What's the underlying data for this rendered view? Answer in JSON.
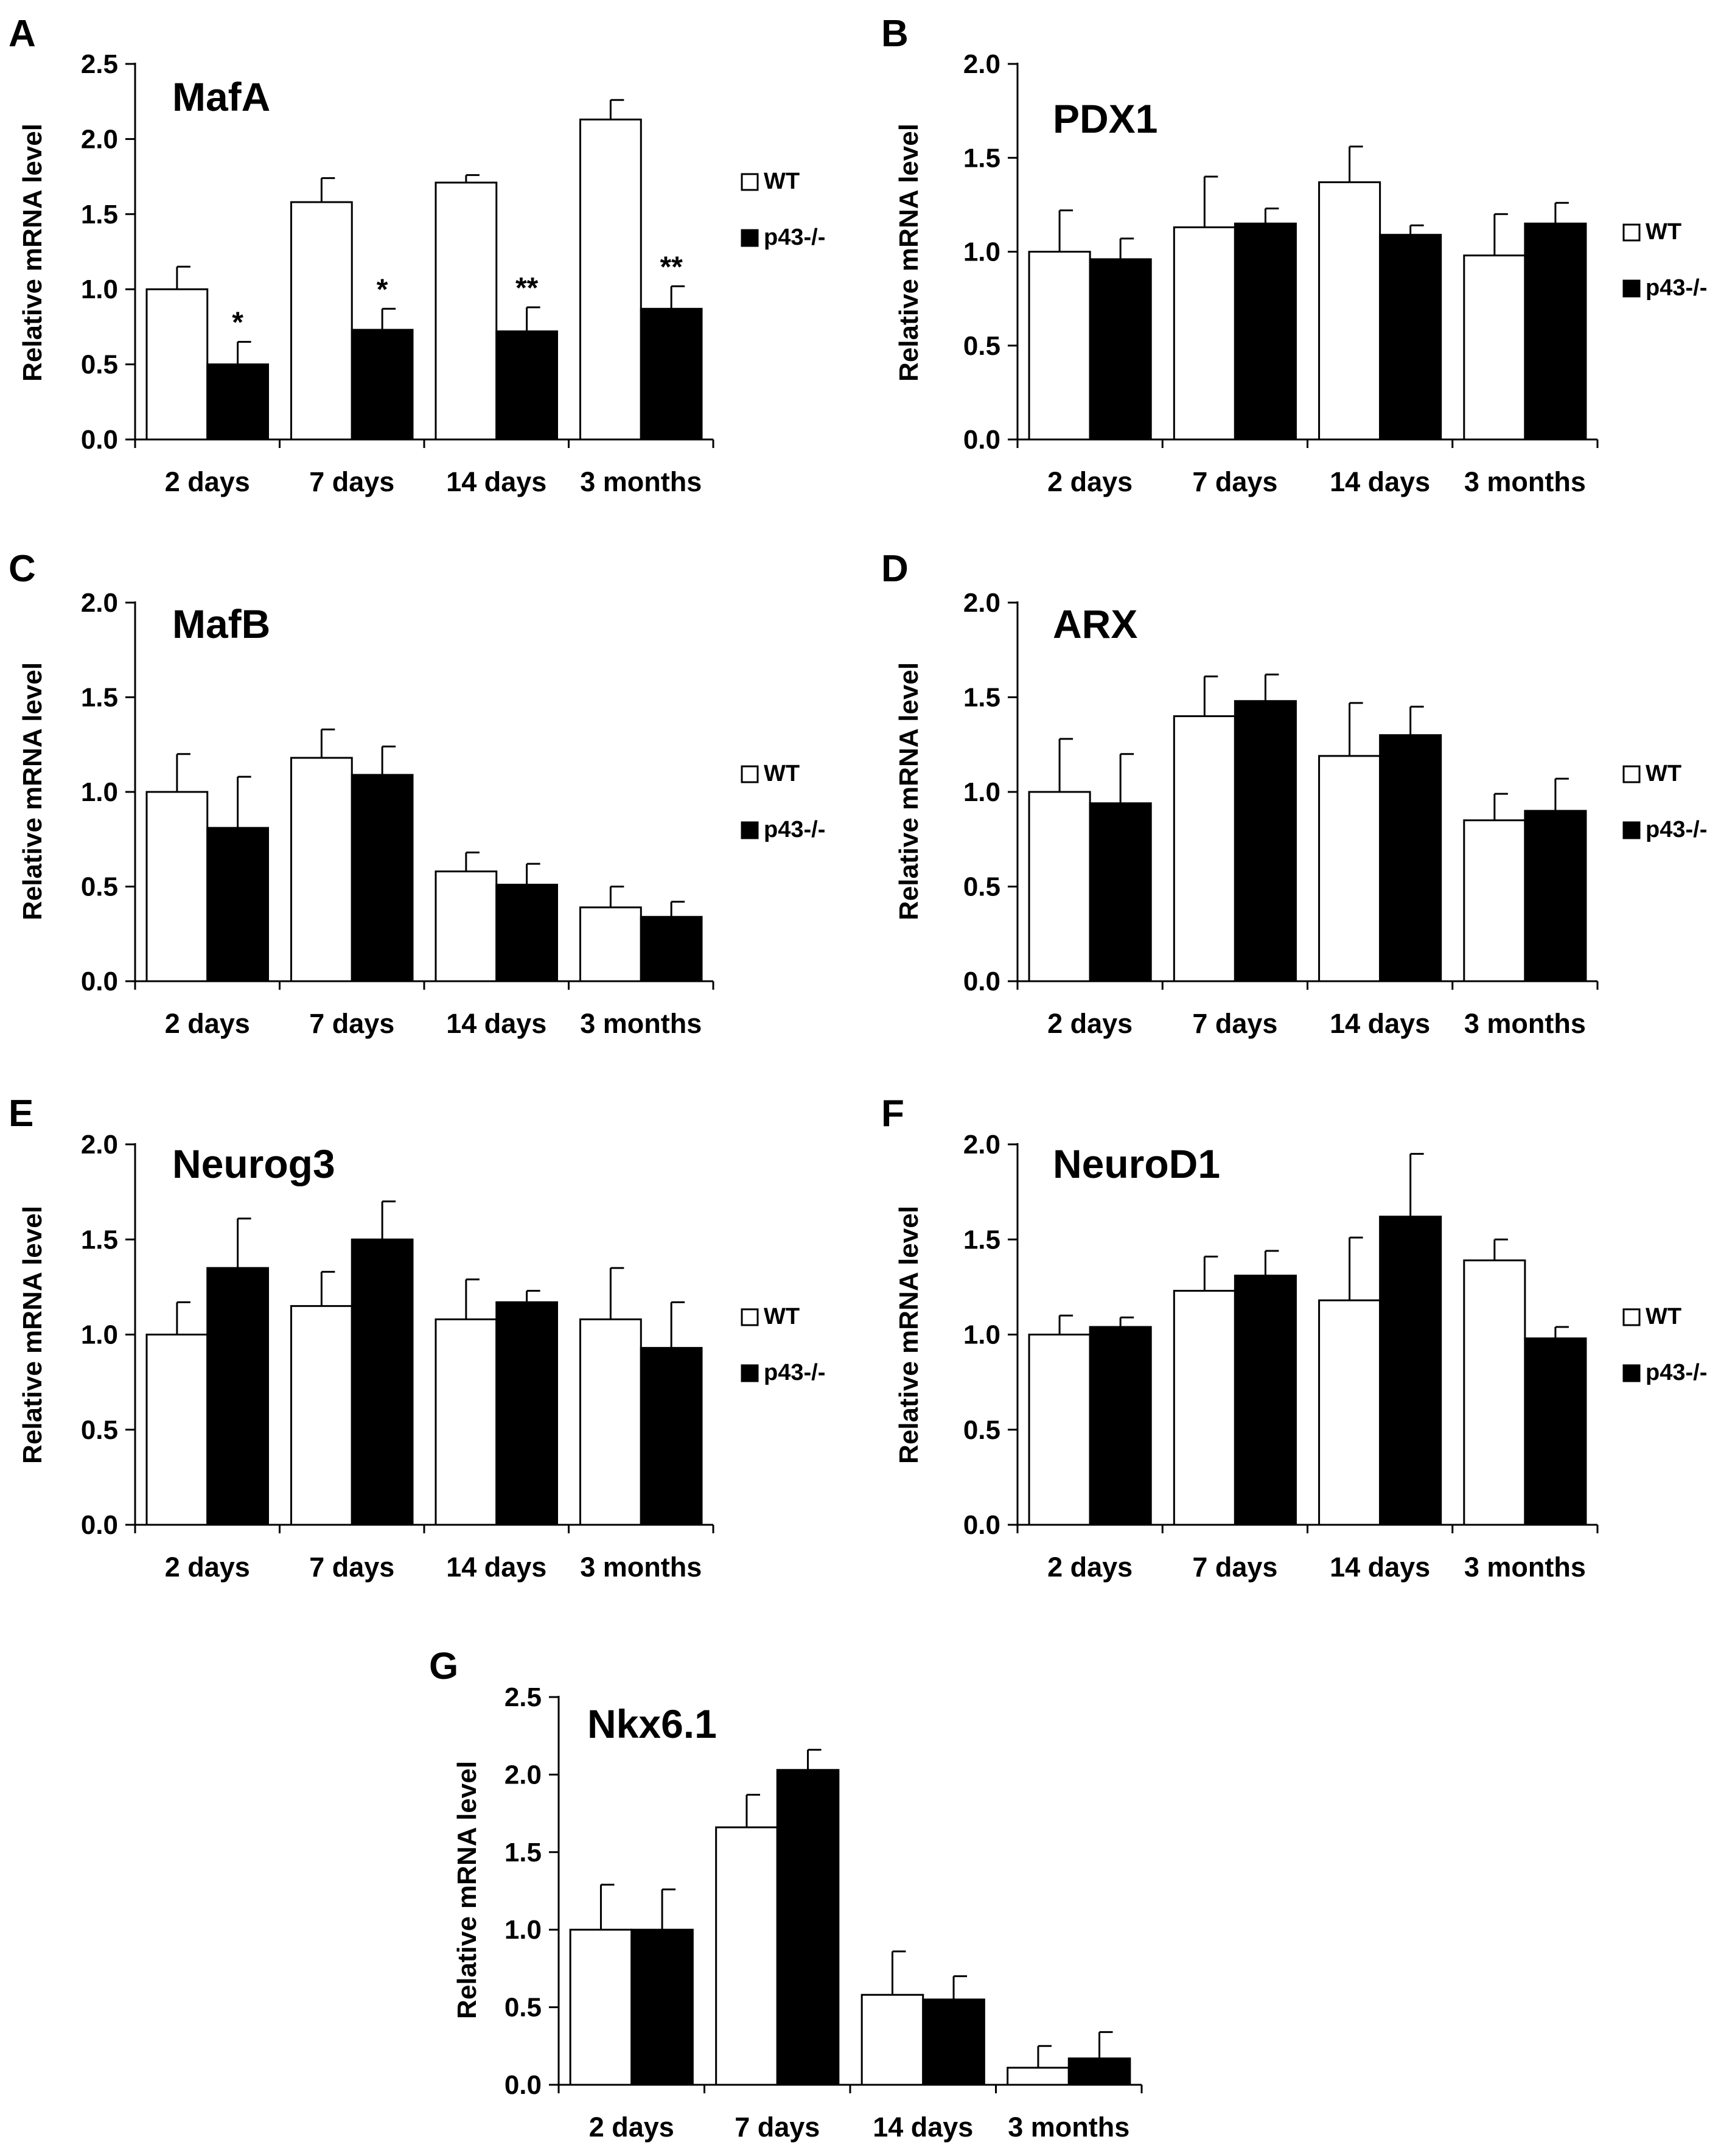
{
  "figure": {
    "categories": [
      "2 days",
      "7 days",
      "14 days",
      "3 months"
    ],
    "ylabel": "Relative mRNA level",
    "legend": [
      {
        "label": "WT",
        "color": "#ffffff"
      },
      {
        "label": "p43-/-",
        "color": "#000000"
      }
    ]
  },
  "chart_data": [
    {
      "panel": "A",
      "type": "bar",
      "title": "MafA",
      "categories": [
        "2 days",
        "7 days",
        "14 days",
        "3 months"
      ],
      "xlabel": "",
      "ylabel": "Relative mRNA level",
      "ylim": [
        0,
        2.5
      ],
      "yticks": [
        "0.0",
        "0.5",
        "1.0",
        "1.5",
        "2.0",
        "2.5"
      ],
      "series": [
        {
          "name": "WT",
          "color": "#ffffff",
          "values": [
            1.0,
            1.58,
            1.71,
            2.13
          ],
          "errors": [
            0.15,
            0.16,
            0.05,
            0.13
          ]
        },
        {
          "name": "p43-/-",
          "color": "#000000",
          "values": [
            0.5,
            0.73,
            0.72,
            0.87
          ],
          "errors": [
            0.15,
            0.14,
            0.16,
            0.15
          ]
        }
      ],
      "annotations": [
        "*",
        "*",
        "**",
        "**"
      ],
      "legend_position": "right"
    },
    {
      "panel": "B",
      "type": "bar",
      "title": "PDX1",
      "categories": [
        "2 days",
        "7 days",
        "14 days",
        "3 months"
      ],
      "xlabel": "",
      "ylabel": "Relative mRNA level",
      "ylim": [
        0,
        2.0
      ],
      "yticks": [
        "0.0",
        "0.5",
        "1.0",
        "1.5",
        "2.0"
      ],
      "series": [
        {
          "name": "WT",
          "color": "#ffffff",
          "values": [
            1.0,
            1.13,
            1.37,
            0.98
          ],
          "errors": [
            0.22,
            0.27,
            0.19,
            0.22
          ]
        },
        {
          "name": "p43-/-",
          "color": "#000000",
          "values": [
            0.96,
            1.15,
            1.09,
            1.15
          ],
          "errors": [
            0.11,
            0.08,
            0.05,
            0.11
          ]
        }
      ],
      "annotations": [
        "",
        "",
        "",
        ""
      ],
      "legend_position": "right"
    },
    {
      "panel": "C",
      "type": "bar",
      "title": "MafB",
      "categories": [
        "2 days",
        "7 days",
        "14 days",
        "3 months"
      ],
      "xlabel": "",
      "ylabel": "Relative mRNA level",
      "ylim": [
        0,
        2.0
      ],
      "yticks": [
        "0.0",
        "0.5",
        "1.0",
        "1.5",
        "2.0"
      ],
      "series": [
        {
          "name": "WT",
          "color": "#ffffff",
          "values": [
            1.0,
            1.18,
            0.58,
            0.39
          ],
          "errors": [
            0.2,
            0.15,
            0.1,
            0.11
          ]
        },
        {
          "name": "p43-/-",
          "color": "#000000",
          "values": [
            0.81,
            1.09,
            0.51,
            0.34
          ],
          "errors": [
            0.27,
            0.15,
            0.11,
            0.08
          ]
        }
      ],
      "annotations": [
        "",
        "",
        "",
        ""
      ],
      "legend_position": "right"
    },
    {
      "panel": "D",
      "type": "bar",
      "title": "ARX",
      "categories": [
        "2 days",
        "7 days",
        "14 days",
        "3 months"
      ],
      "xlabel": "",
      "ylabel": "Relative mRNA level",
      "ylim": [
        0,
        2.0
      ],
      "yticks": [
        "0.0",
        "0.5",
        "1.0",
        "1.5",
        "2.0"
      ],
      "series": [
        {
          "name": "WT",
          "color": "#ffffff",
          "values": [
            1.0,
            1.4,
            1.19,
            0.85
          ],
          "errors": [
            0.28,
            0.21,
            0.28,
            0.14
          ]
        },
        {
          "name": "p43-/-",
          "color": "#000000",
          "values": [
            0.94,
            1.48,
            1.3,
            0.9
          ],
          "errors": [
            0.26,
            0.14,
            0.15,
            0.17
          ]
        }
      ],
      "annotations": [
        "",
        "",
        "",
        ""
      ],
      "legend_position": "right"
    },
    {
      "panel": "E",
      "type": "bar",
      "title": "Neurog3",
      "categories": [
        "2 days",
        "7 days",
        "14 days",
        "3 months"
      ],
      "xlabel": "",
      "ylabel": "Relative mRNA level",
      "ylim": [
        0,
        2.0
      ],
      "yticks": [
        "0.0",
        "0.5",
        "1.0",
        "1.5",
        "2.0"
      ],
      "series": [
        {
          "name": "WT",
          "color": "#ffffff",
          "values": [
            1.0,
            1.15,
            1.08,
            1.08
          ],
          "errors": [
            0.17,
            0.18,
            0.21,
            0.27
          ]
        },
        {
          "name": "p43-/-",
          "color": "#000000",
          "values": [
            1.35,
            1.5,
            1.17,
            0.93
          ],
          "errors": [
            0.26,
            0.2,
            0.06,
            0.24
          ]
        }
      ],
      "annotations": [
        "",
        "",
        "",
        ""
      ],
      "legend_position": "right"
    },
    {
      "panel": "F",
      "type": "bar",
      "title": "NeuroD1",
      "categories": [
        "2 days",
        "7 days",
        "14 days",
        "3 months"
      ],
      "xlabel": "",
      "ylabel": "Relative mRNA level",
      "ylim": [
        0,
        2.0
      ],
      "yticks": [
        "0.0",
        "0.5",
        "1.0",
        "1.5",
        "2.0"
      ],
      "series": [
        {
          "name": "WT",
          "color": "#ffffff",
          "values": [
            1.0,
            1.23,
            1.18,
            1.39
          ],
          "errors": [
            0.1,
            0.18,
            0.33,
            0.11
          ]
        },
        {
          "name": "p43-/-",
          "color": "#000000",
          "values": [
            1.04,
            1.31,
            1.62,
            0.98
          ],
          "errors": [
            0.05,
            0.13,
            0.33,
            0.06
          ]
        }
      ],
      "annotations": [
        "",
        "",
        "",
        ""
      ],
      "legend_position": "right"
    },
    {
      "panel": "G",
      "type": "bar",
      "title": "Nkx6.1",
      "categories": [
        "2 days",
        "7 days",
        "14 days",
        "3 months"
      ],
      "xlabel": "",
      "ylabel": "Relative mRNA level",
      "ylim": [
        0,
        2.5
      ],
      "yticks": [
        "0.0",
        "0.5",
        "1.0",
        "1.5",
        "2.0",
        "2.5"
      ],
      "series": [
        {
          "name": "WT",
          "color": "#ffffff",
          "values": [
            1.0,
            1.66,
            0.58,
            0.11
          ],
          "errors": [
            0.29,
            0.21,
            0.28,
            0.14
          ]
        },
        {
          "name": "p43-/-",
          "color": "#000000",
          "values": [
            1.0,
            2.03,
            0.55,
            0.17
          ],
          "errors": [
            0.26,
            0.13,
            0.15,
            0.17
          ]
        }
      ],
      "annotations": [
        "",
        "",
        "",
        ""
      ],
      "legend_position": "none"
    }
  ]
}
